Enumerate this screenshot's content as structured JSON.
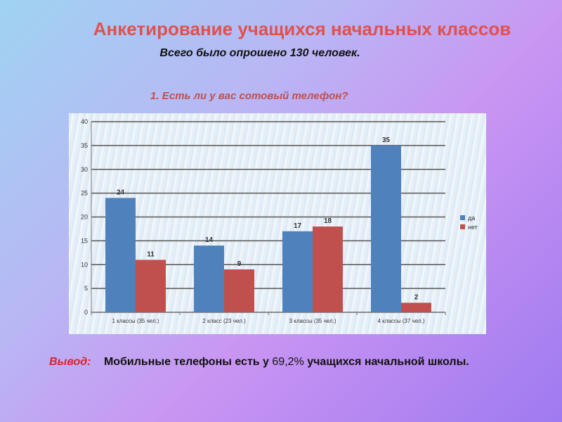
{
  "slide": {
    "title": "Анкетирование учащихся начальных классов",
    "subtitle": "Всего было опрошено 130 человек.",
    "question": "1. Есть ли у вас сотовый телефон?",
    "conclusion_label": "Вывод:",
    "conclusion_text_1": "Мобильные телефоны есть у",
    "conclusion_percent": "69,2%",
    "conclusion_text_2": "учащихся начальной школы."
  },
  "chart_data": {
    "type": "bar",
    "categories": [
      "1 классы (35 чел.)",
      "2 класс (23 чел.)",
      "3 классы (35 чел.)",
      "4 классы (37 чел.)"
    ],
    "series": [
      {
        "name": "да",
        "values": [
          24,
          14,
          17,
          35
        ],
        "color": "#4f81bd"
      },
      {
        "name": "нет",
        "values": [
          11,
          9,
          18,
          2
        ],
        "color": "#c0504d"
      }
    ],
    "ylim": [
      0,
      40
    ],
    "yticks": [
      0,
      5,
      10,
      15,
      20,
      25,
      30,
      35,
      40
    ],
    "grid": true,
    "legend": "right"
  }
}
